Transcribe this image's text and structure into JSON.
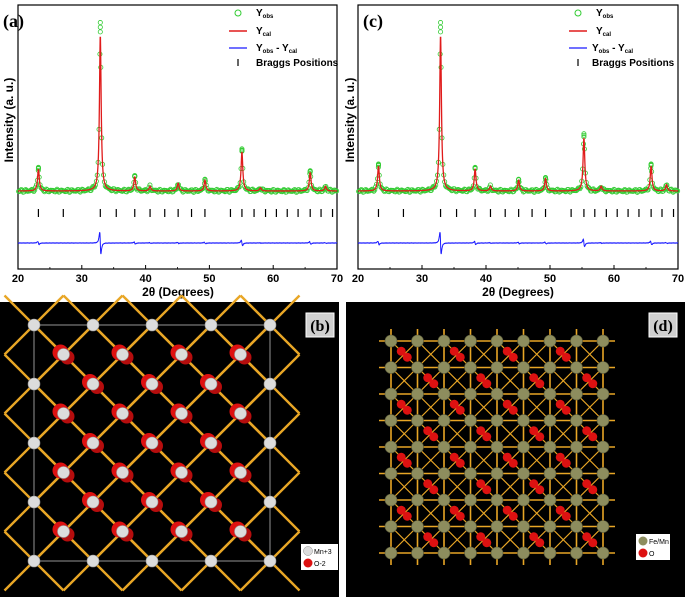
{
  "colors": {
    "obs": "#33cc33",
    "cal": "#e01b1b",
    "diff": "#1a1aff",
    "bragg": "#000000",
    "bond": "#e8a626",
    "o": "#dd1111",
    "mn": "#dcdcdc",
    "femn": "#8d8d5e"
  },
  "chart_data": [
    {
      "type": "line",
      "panel_label": "(a)",
      "xlabel": "2θ (Degrees)",
      "ylabel": "Intensity (a. u.)",
      "xlim": [
        20,
        70
      ],
      "xticks": [
        20,
        30,
        40,
        50,
        60,
        70
      ],
      "legend": {
        "placement": "top-right",
        "entries": [
          "Y_obs",
          "Y_cal",
          "Y_obs - Y_cal",
          "Braggs Positions"
        ]
      },
      "peaks": [
        {
          "two_theta": 23.2,
          "rel_intensity": 0.14
        },
        {
          "two_theta": 32.9,
          "rel_intensity": 1.0
        },
        {
          "two_theta": 38.3,
          "rel_intensity": 0.09
        },
        {
          "two_theta": 40.7,
          "rel_intensity": 0.03
        },
        {
          "two_theta": 45.1,
          "rel_intensity": 0.05
        },
        {
          "two_theta": 49.3,
          "rel_intensity": 0.07
        },
        {
          "two_theta": 55.1,
          "rel_intensity": 0.25
        },
        {
          "two_theta": 58.0,
          "rel_intensity": 0.02
        },
        {
          "two_theta": 65.8,
          "rel_intensity": 0.12
        },
        {
          "two_theta": 68.2,
          "rel_intensity": 0.03
        }
      ],
      "bragg_positions": [
        23.2,
        27.1,
        32.9,
        35.4,
        38.3,
        40.7,
        43.0,
        45.1,
        47.2,
        49.3,
        53.3,
        55.1,
        57.0,
        58.8,
        60.5,
        62.2,
        63.9,
        65.8,
        67.5,
        69.3
      ]
    },
    {
      "type": "line",
      "panel_label": "(c)",
      "xlabel": "2θ (Degrees)",
      "ylabel": "Intensity (a. u.)",
      "xlim": [
        20,
        70
      ],
      "xticks": [
        20,
        30,
        40,
        50,
        60,
        70
      ],
      "legend": {
        "placement": "top-right",
        "entries": [
          "Y_obs",
          "Y_cal",
          "Y_obs - Y_cal",
          "Braggs Positions"
        ]
      },
      "peaks": [
        {
          "two_theta": 23.2,
          "rel_intensity": 0.16
        },
        {
          "two_theta": 32.9,
          "rel_intensity": 1.0
        },
        {
          "two_theta": 38.3,
          "rel_intensity": 0.14
        },
        {
          "two_theta": 40.7,
          "rel_intensity": 0.03
        },
        {
          "two_theta": 45.1,
          "rel_intensity": 0.07
        },
        {
          "two_theta": 49.3,
          "rel_intensity": 0.08
        },
        {
          "two_theta": 55.3,
          "rel_intensity": 0.34
        },
        {
          "two_theta": 58.0,
          "rel_intensity": 0.03
        },
        {
          "two_theta": 65.8,
          "rel_intensity": 0.16
        },
        {
          "two_theta": 68.2,
          "rel_intensity": 0.04
        }
      ],
      "bragg_positions": [
        23.2,
        27.1,
        32.9,
        35.4,
        38.3,
        40.7,
        43.0,
        45.1,
        47.2,
        49.3,
        53.3,
        55.3,
        57.0,
        58.8,
        60.5,
        62.2,
        63.9,
        65.8,
        67.5,
        69.3
      ]
    }
  ],
  "panels": {
    "a": {
      "label": "(a)"
    },
    "b": {
      "label": "(b)",
      "legend": [
        "Mn+3",
        "O-2"
      ]
    },
    "c": {
      "label": "(c)"
    },
    "d": {
      "label": "(d)",
      "legend": [
        "Fe/Mn",
        "O"
      ]
    }
  }
}
